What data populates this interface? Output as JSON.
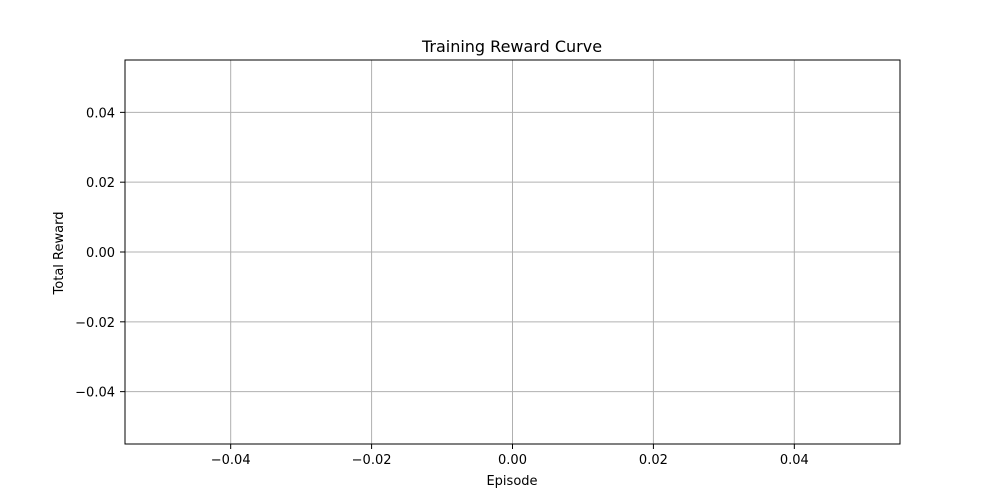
{
  "chart_data": {
    "type": "line",
    "title": "Training Reward Curve",
    "xlabel": "Episode",
    "ylabel": "Total Reward",
    "xlim": [
      -0.055,
      0.055
    ],
    "ylim": [
      -0.055,
      0.055
    ],
    "x_ticks": [
      -0.04,
      -0.02,
      0.0,
      0.02,
      0.04
    ],
    "x_tick_labels": [
      "−0.04",
      "−0.02",
      "0.00",
      "0.02",
      "0.04"
    ],
    "y_ticks": [
      -0.04,
      -0.02,
      0.0,
      0.02,
      0.04
    ],
    "y_tick_labels": [
      "−0.04",
      "−0.02",
      "0.00",
      "0.02",
      "0.04"
    ],
    "grid": true,
    "series": [
      {
        "x": [],
        "y": []
      }
    ],
    "colors": {
      "grid": "#b0b0b0",
      "axes": "#000000",
      "line": "#1f77b4"
    }
  }
}
